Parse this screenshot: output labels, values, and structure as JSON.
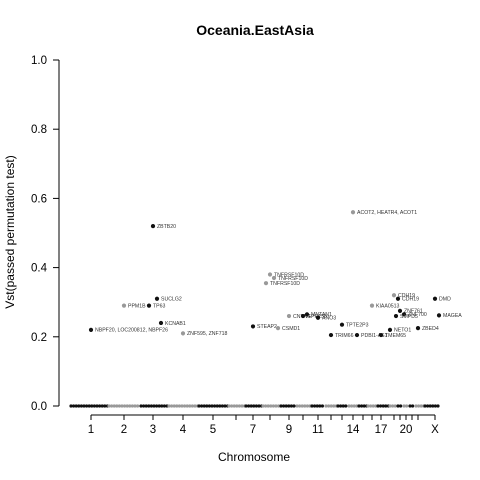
{
  "chart_data": {
    "type": "scatter",
    "title": "Oceania.EastAsia",
    "xlabel": "Chromosome",
    "ylabel": "Vst(passed permutation test)",
    "ylim": [
      0,
      1
    ],
    "yticks": [
      "0.0",
      "0.2",
      "0.4",
      "0.6",
      "0.8",
      "1.0"
    ],
    "x_tick_labels": [
      "1",
      "2",
      "3",
      "4",
      "5",
      "7",
      "9",
      "11",
      "14",
      "17",
      "20",
      "X"
    ],
    "colors": {
      "dark": "#111111",
      "gray": "#999999",
      "axis": "#000000"
    },
    "labeled_points": [
      {
        "label": "ZBTB20",
        "chrom": "3",
        "y": 0.52,
        "color": "dark"
      },
      {
        "label": "ACOT2, HEATR4, ACOT1",
        "chrom": "14",
        "y": 0.56,
        "color": "gray"
      },
      {
        "label": "TNFRSF10D",
        "chrom": "8",
        "y": 0.38,
        "color": "gray"
      },
      {
        "label": "TNFRSF10D",
        "chrom": "8",
        "y": 0.37,
        "color": "gray"
      },
      {
        "label": "TNFRSF10D",
        "chrom": "8",
        "y": 0.355,
        "color": "gray"
      },
      {
        "label": "SUCLG2",
        "chrom": "3",
        "y": 0.31,
        "color": "dark"
      },
      {
        "label": "PPM1B",
        "chrom": "2",
        "y": 0.29,
        "color": "gray"
      },
      {
        "label": "TP63",
        "chrom": "3",
        "y": 0.29,
        "color": "dark"
      },
      {
        "label": "KCNAB1",
        "chrom": "3",
        "y": 0.24,
        "color": "dark"
      },
      {
        "label": "NBPF20, LOC200812, NBPF26",
        "chrom": "1",
        "y": 0.22,
        "color": "dark"
      },
      {
        "label": "ZNF595, ZNF718",
        "chrom": "4",
        "y": 0.21,
        "color": "gray"
      },
      {
        "label": "STEAP2",
        "chrom": "7",
        "y": 0.23,
        "color": "dark"
      },
      {
        "label": "CSMD1",
        "chrom": "8",
        "y": 0.225,
        "color": "gray"
      },
      {
        "label": "CNTN4",
        "chrom": "9",
        "y": 0.26,
        "color": "gray"
      },
      {
        "label": "GPR158",
        "chrom": "10",
        "y": 0.26,
        "color": "dark"
      },
      {
        "label": "MNTAN1",
        "chrom": "10",
        "y": 0.265,
        "color": "dark"
      },
      {
        "label": "ANO3",
        "chrom": "11",
        "y": 0.255,
        "color": "dark"
      },
      {
        "label": "TRIM66",
        "chrom": "12",
        "y": 0.205,
        "color": "dark"
      },
      {
        "label": "TPTE2P3",
        "chrom": "13",
        "y": 0.235,
        "color": "dark"
      },
      {
        "label": "PDBI1-AS1",
        "chrom": "14",
        "y": 0.205,
        "color": "dark"
      },
      {
        "label": "CDH19",
        "chrom": "18",
        "y": 0.32,
        "color": "gray"
      },
      {
        "label": "CDH19",
        "chrom": "18",
        "y": 0.31,
        "color": "dark"
      },
      {
        "label": "DMD",
        "chrom": "X",
        "y": 0.31,
        "color": "dark"
      },
      {
        "label": "KIAA0513",
        "chrom": "16",
        "y": 0.29,
        "color": "gray"
      },
      {
        "label": "ZNF761",
        "chrom": "19",
        "y": 0.275,
        "color": "dark"
      },
      {
        "label": "ZNF700",
        "chrom": "19",
        "y": 0.265,
        "color": "dark"
      },
      {
        "label": "SMPD5",
        "chrom": "19",
        "y": 0.26,
        "color": "dark"
      },
      {
        "label": "MAGEA",
        "chrom": "X",
        "y": 0.262,
        "color": "dark"
      },
      {
        "label": "TMEM65",
        "chrom": "17",
        "y": 0.205,
        "color": "dark"
      },
      {
        "label": "NETO1",
        "chrom": "18",
        "y": 0.22,
        "color": "dark"
      },
      {
        "label": "ZBED4",
        "chrom": "22",
        "y": 0.225,
        "color": "dark"
      }
    ]
  }
}
